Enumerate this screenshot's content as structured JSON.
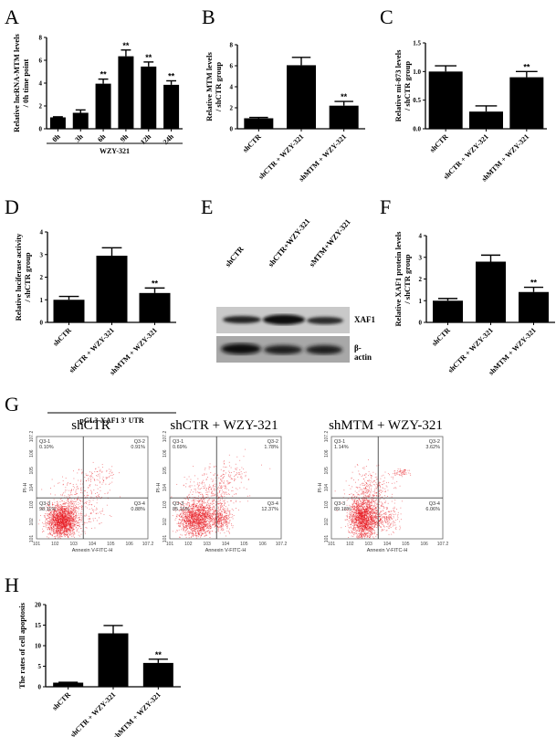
{
  "figure": {
    "panels": [
      "A",
      "B",
      "C",
      "D",
      "E",
      "F",
      "G",
      "H"
    ]
  },
  "colors": {
    "bar": "#000000",
    "flow_dots": "#e8141c",
    "axis": "#000000"
  },
  "chart_data": [
    {
      "panel": "A",
      "type": "bar",
      "title": "",
      "ylabel": "Relative lncRNA-MTM levels / 0h time point",
      "xlabel": "WZY-321",
      "categories": [
        "0h",
        "3h",
        "6h",
        "9h",
        "12h",
        "24h"
      ],
      "values": [
        1.0,
        1.4,
        3.95,
        6.35,
        5.45,
        3.85
      ],
      "errors": [
        0.05,
        0.25,
        0.4,
        0.55,
        0.4,
        0.35
      ],
      "significance": [
        "",
        "",
        "**",
        "**",
        "**",
        "**"
      ],
      "yticks": [
        "0",
        "2",
        "4",
        "6",
        "8"
      ],
      "ylim": [
        0,
        8
      ],
      "grid": false
    },
    {
      "panel": "B",
      "type": "bar",
      "ylabel": "Relative MTM levels / shCTR group",
      "categories": [
        "shCTR",
        "shCTR + WZY-321",
        "shMTM + WZY-321"
      ],
      "values": [
        1.0,
        6.05,
        2.2
      ],
      "errors": [
        0.08,
        0.75,
        0.4
      ],
      "significance": [
        "",
        "",
        "**"
      ],
      "yticks": [
        "0",
        "2",
        "4",
        "6",
        "8"
      ],
      "ylim": [
        0,
        8
      ],
      "grid": false
    },
    {
      "panel": "C",
      "type": "bar",
      "ylabel": "Relative mi-873 levels / shCTR group",
      "categories": [
        "shCTR",
        "shCTR + WZY-321",
        "shMTM + WZY-321"
      ],
      "values": [
        1.0,
        0.3,
        0.9
      ],
      "errors": [
        0.1,
        0.1,
        0.1
      ],
      "significance": [
        "",
        "",
        "**"
      ],
      "yticks": [
        "0.0",
        "0.5",
        "1.0",
        "1.5"
      ],
      "ylim": [
        0,
        1.5
      ],
      "grid": false
    },
    {
      "panel": "D",
      "type": "bar",
      "ylabel": "Relative luciferase activity / shCTR group",
      "xlabel": "pGL3-XAF1 3' UTR",
      "categories": [
        "shCTR",
        "shCTR + WZY-321",
        "shMTM + WZY-321"
      ],
      "values": [
        1.0,
        2.95,
        1.3
      ],
      "errors": [
        0.15,
        0.35,
        0.22
      ],
      "significance": [
        "",
        "",
        "**"
      ],
      "yticks": [
        "0",
        "1",
        "2",
        "3",
        "4"
      ],
      "ylim": [
        0,
        4
      ],
      "grid": false
    },
    {
      "panel": "F",
      "type": "bar",
      "ylabel": "Relative XAF1 protein levels / shCTR group",
      "categories": [
        "shCTR",
        "shCTR + WZY-321",
        "shMTM + WZY-321"
      ],
      "values": [
        1.0,
        2.8,
        1.4
      ],
      "errors": [
        0.1,
        0.3,
        0.22
      ],
      "significance": [
        "",
        "",
        "**"
      ],
      "yticks": [
        "0",
        "1",
        "2",
        "3",
        "4"
      ],
      "ylim": [
        0,
        4
      ],
      "grid": false
    },
    {
      "panel": "G",
      "type": "scatter",
      "xlabel": "Annexin V-FITC-H",
      "ylabel": "PI-H",
      "xticks": [
        "10^1",
        "10^2",
        "10^3",
        "10^4",
        "10^5",
        "10^6",
        "10^7.2"
      ],
      "yticks": [
        "10^1",
        "10^2",
        "10^3",
        "10^4",
        "10^5",
        "10^6",
        "10^7.2"
      ],
      "plots": [
        {
          "title": "shCTR",
          "quadrants": {
            "Q3-1": "0.10%",
            "Q3-2": "0.91%",
            "Q3-3": "98.11%",
            "Q3-4": "0.88%"
          }
        },
        {
          "title": "shCTR + WZY-321",
          "quadrants": {
            "Q3-1": "0.69%",
            "Q3-2": "1.78%",
            "Q3-3": "85.16%",
            "Q3-4": "12.37%"
          }
        },
        {
          "title": "shMTM + WZY-321",
          "quadrants": {
            "Q3-1": "1.14%",
            "Q3-2": "3.62%",
            "Q3-3": "89.18%",
            "Q3-4": "6.06%"
          }
        }
      ]
    },
    {
      "panel": "H",
      "type": "bar",
      "ylabel": "The rates of cell apoptosis",
      "categories": [
        "shCTR",
        "shCTR + WZY-321",
        "shMTM + WZY-321"
      ],
      "values": [
        1.0,
        13.0,
        5.8
      ],
      "errors": [
        0.1,
        1.9,
        0.9
      ],
      "significance": [
        "",
        "",
        "**"
      ],
      "yticks": [
        "0",
        "5",
        "10",
        "15",
        "20"
      ],
      "ylim": [
        0,
        20
      ],
      "grid": false
    }
  ],
  "western_blot": {
    "panel": "E",
    "lanes": [
      "shCTR",
      "shCTR+WZY-321",
      "sMTM+WZY-321"
    ],
    "bands": [
      "XAF1",
      "β-actin"
    ]
  }
}
